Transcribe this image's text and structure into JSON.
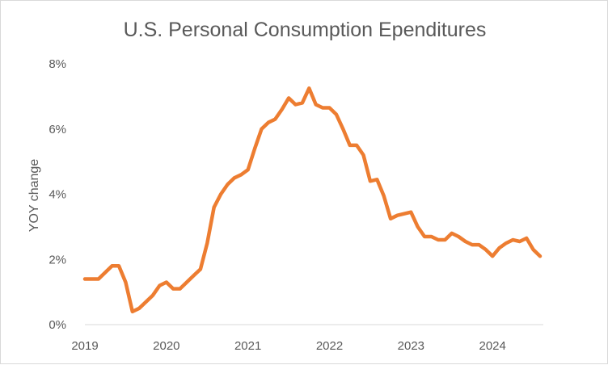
{
  "chart_data": {
    "type": "line",
    "title": "U.S. Personal Consumption Ependitures",
    "xlabel": "",
    "ylabel": "YOY change",
    "ylim": [
      0,
      8
    ],
    "yticks": [
      0,
      2,
      4,
      6,
      8
    ],
    "ytick_labels": [
      "0%",
      "2%",
      "4%",
      "6%",
      "8%"
    ],
    "xtick_labels": [
      "2019",
      "2020",
      "2021",
      "2022",
      "2023",
      "2024"
    ],
    "xlim": [
      "2019-01",
      "2024-08"
    ],
    "grid": false,
    "legend": "none",
    "line_color": "#ED7D31",
    "series": [
      {
        "x": [
          "2019-01",
          "2019-02",
          "2019-03",
          "2019-04",
          "2019-05",
          "2019-06",
          "2019-07",
          "2019-08",
          "2019-09",
          "2019-10",
          "2019-11",
          "2019-12",
          "2020-01",
          "2020-02",
          "2020-03",
          "2020-04",
          "2020-05",
          "2020-06",
          "2020-07",
          "2020-08",
          "2020-09",
          "2020-10",
          "2020-11",
          "2020-12",
          "2021-01",
          "2021-02",
          "2021-03",
          "2021-04",
          "2021-05",
          "2021-06",
          "2021-07",
          "2021-08",
          "2021-09",
          "2021-10",
          "2021-11",
          "2021-12",
          "2022-01",
          "2022-02",
          "2022-03",
          "2022-04",
          "2022-05",
          "2022-06",
          "2022-07",
          "2022-08",
          "2022-09",
          "2022-10",
          "2022-11",
          "2022-12",
          "2023-01",
          "2023-02",
          "2023-03",
          "2023-04",
          "2023-05",
          "2023-06",
          "2023-07",
          "2023-08",
          "2023-09",
          "2023-10",
          "2023-11",
          "2023-12",
          "2024-01",
          "2024-02",
          "2024-03",
          "2024-04",
          "2024-05",
          "2024-06",
          "2024-07",
          "2024-08"
        ],
        "values": [
          1.4,
          1.4,
          1.4,
          1.6,
          1.8,
          1.8,
          1.3,
          0.4,
          0.5,
          0.7,
          0.9,
          1.2,
          1.3,
          1.1,
          1.1,
          1.3,
          1.5,
          1.7,
          2.5,
          3.6,
          4.0,
          4.3,
          4.5,
          4.6,
          4.75,
          5.4,
          6.0,
          6.2,
          6.3,
          6.6,
          6.95,
          6.75,
          6.8,
          7.25,
          6.75,
          6.65,
          6.65,
          6.45,
          6.0,
          5.5,
          5.5,
          5.2,
          4.4,
          4.45,
          3.95,
          3.25,
          3.35,
          3.4,
          3.45,
          3.0,
          2.7,
          2.7,
          2.6,
          2.6,
          2.8,
          2.7,
          2.55,
          2.45,
          2.45,
          2.3,
          2.1,
          2.35,
          2.5,
          2.6,
          2.55,
          2.65,
          2.3,
          2.1
        ]
      }
    ]
  }
}
